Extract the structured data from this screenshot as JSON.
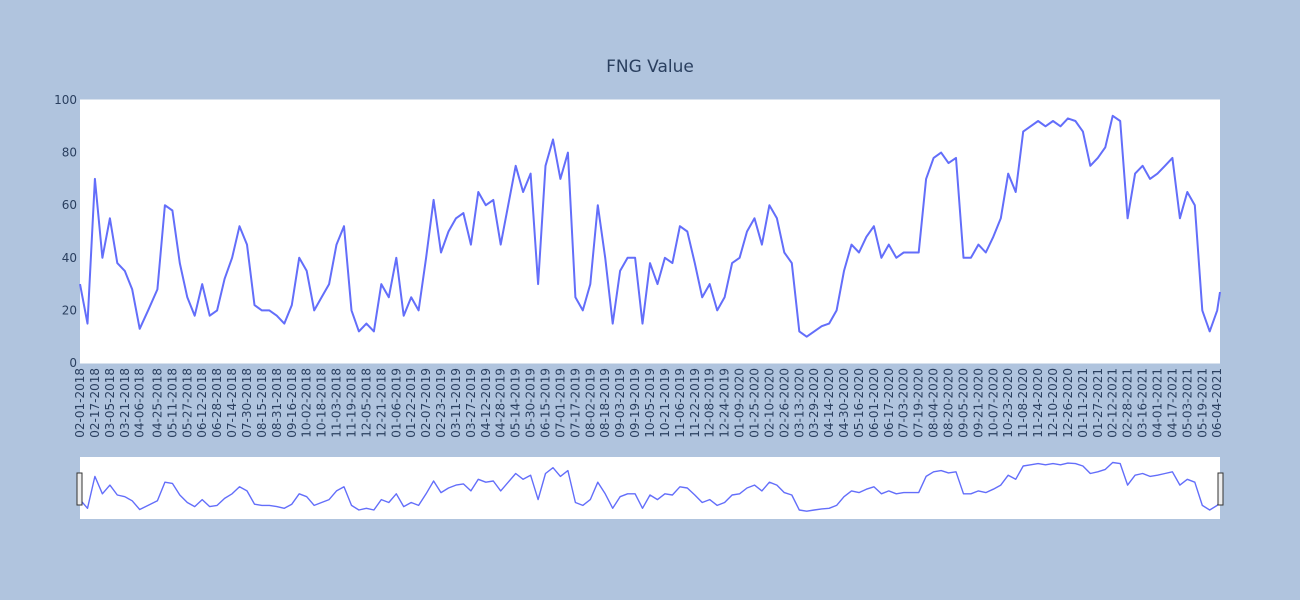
{
  "chart_data": {
    "type": "line",
    "title": "FNG Value",
    "x": [
      "2018-02-01",
      "2018-02-09",
      "2018-02-17",
      "2018-02-25",
      "2018-03-05",
      "2018-03-13",
      "2018-03-21",
      "2018-03-29",
      "2018-04-06",
      "2018-04-15",
      "2018-04-25",
      "2018-05-03",
      "2018-05-11",
      "2018-05-19",
      "2018-05-27",
      "2018-06-04",
      "2018-06-12",
      "2018-06-20",
      "2018-06-28",
      "2018-07-06",
      "2018-07-14",
      "2018-07-22",
      "2018-07-30",
      "2018-08-07",
      "2018-08-15",
      "2018-08-23",
      "2018-08-31",
      "2018-09-08",
      "2018-09-16",
      "2018-09-24",
      "2018-10-02",
      "2018-10-10",
      "2018-10-18",
      "2018-10-26",
      "2018-11-03",
      "2018-11-11",
      "2018-11-19",
      "2018-11-27",
      "2018-12-05",
      "2018-12-13",
      "2018-12-21",
      "2018-12-29",
      "2019-01-06",
      "2019-01-14",
      "2019-01-22",
      "2019-01-30",
      "2019-02-07",
      "2019-02-15",
      "2019-02-23",
      "2019-03-03",
      "2019-03-11",
      "2019-03-19",
      "2019-03-27",
      "2019-04-04",
      "2019-04-12",
      "2019-04-20",
      "2019-04-28",
      "2019-05-06",
      "2019-05-14",
      "2019-05-22",
      "2019-05-30",
      "2019-06-07",
      "2019-06-15",
      "2019-06-23",
      "2019-07-01",
      "2019-07-09",
      "2019-07-17",
      "2019-07-25",
      "2019-08-02",
      "2019-08-10",
      "2019-08-18",
      "2019-08-26",
      "2019-09-03",
      "2019-09-11",
      "2019-09-19",
      "2019-09-27",
      "2019-10-05",
      "2019-10-13",
      "2019-10-21",
      "2019-10-29",
      "2019-11-06",
      "2019-11-14",
      "2019-11-22",
      "2019-11-30",
      "2019-12-08",
      "2019-12-16",
      "2019-12-24",
      "2020-01-01",
      "2020-01-09",
      "2020-01-17",
      "2020-01-25",
      "2020-02-02",
      "2020-02-10",
      "2020-02-18",
      "2020-02-26",
      "2020-03-05",
      "2020-03-13",
      "2020-03-21",
      "2020-03-29",
      "2020-04-06",
      "2020-04-14",
      "2020-04-22",
      "2020-04-30",
      "2020-05-08",
      "2020-05-16",
      "2020-05-24",
      "2020-06-01",
      "2020-06-09",
      "2020-06-17",
      "2020-06-25",
      "2020-07-03",
      "2020-07-11",
      "2020-07-19",
      "2020-07-27",
      "2020-08-04",
      "2020-08-12",
      "2020-08-20",
      "2020-08-28",
      "2020-09-05",
      "2020-09-13",
      "2020-09-21",
      "2020-09-29",
      "2020-10-07",
      "2020-10-15",
      "2020-10-23",
      "2020-10-31",
      "2020-11-08",
      "2020-11-16",
      "2020-11-24",
      "2020-12-02",
      "2020-12-10",
      "2020-12-18",
      "2020-12-26",
      "2021-01-03",
      "2021-01-11",
      "2021-01-19",
      "2021-01-27",
      "2021-02-04",
      "2021-02-12",
      "2021-02-20",
      "2021-02-28",
      "2021-03-08",
      "2021-03-16",
      "2021-03-24",
      "2021-04-01",
      "2021-04-09",
      "2021-04-17",
      "2021-04-25",
      "2021-05-03",
      "2021-05-11",
      "2021-05-19",
      "2021-05-27",
      "2021-06-04",
      "2021-06-07"
    ],
    "series": [
      {
        "color": "#636efa",
        "values": [
          30,
          15,
          70,
          40,
          55,
          38,
          35,
          28,
          13,
          20,
          28,
          60,
          58,
          38,
          25,
          18,
          30,
          18,
          20,
          32,
          40,
          52,
          45,
          22,
          20,
          20,
          18,
          15,
          22,
          40,
          35,
          20,
          25,
          30,
          45,
          52,
          20,
          12,
          15,
          12,
          30,
          25,
          40,
          18,
          25,
          20,
          40,
          62,
          42,
          50,
          55,
          57,
          45,
          65,
          60,
          62,
          45,
          60,
          75,
          65,
          72,
          30,
          75,
          85,
          70,
          80,
          25,
          20,
          30,
          60,
          40,
          15,
          35,
          40,
          40,
          15,
          38,
          30,
          40,
          38,
          52,
          50,
          38,
          25,
          30,
          20,
          25,
          38,
          40,
          50,
          55,
          45,
          60,
          55,
          42,
          38,
          12,
          10,
          12,
          14,
          15,
          20,
          35,
          45,
          42,
          48,
          52,
          40,
          45,
          40,
          42,
          42,
          42,
          70,
          78,
          80,
          76,
          78,
          40,
          40,
          45,
          42,
          48,
          55,
          72,
          65,
          88,
          90,
          92,
          90,
          92,
          90,
          93,
          92,
          88,
          75,
          78,
          82,
          94,
          92,
          55,
          72,
          75,
          70,
          72,
          75,
          78,
          55,
          65,
          60,
          20,
          12,
          20,
          27
        ]
      }
    ],
    "xlim": [
      "2018-02-01",
      "2021-06-07"
    ],
    "ylim": [
      0,
      100
    ],
    "yticks": [
      0,
      20,
      40,
      60,
      80,
      100
    ],
    "xticks": [
      {
        "value": "2018-02-01",
        "label": "02-01-2018"
      },
      {
        "value": "2018-02-17",
        "label": "02-17-2018"
      },
      {
        "value": "2018-03-05",
        "label": "03-05-2018"
      },
      {
        "value": "2018-03-21",
        "label": "03-21-2018"
      },
      {
        "value": "2018-04-06",
        "label": "04-06-2018"
      },
      {
        "value": "2018-04-25",
        "label": "04-25-2018"
      },
      {
        "value": "2018-05-11",
        "label": "05-11-2018"
      },
      {
        "value": "2018-05-27",
        "label": "05-27-2018"
      },
      {
        "value": "2018-06-12",
        "label": "06-12-2018"
      },
      {
        "value": "2018-06-28",
        "label": "06-28-2018"
      },
      {
        "value": "2018-07-14",
        "label": "07-14-2018"
      },
      {
        "value": "2018-07-30",
        "label": "07-30-2018"
      },
      {
        "value": "2018-08-15",
        "label": "08-15-2018"
      },
      {
        "value": "2018-08-31",
        "label": "08-31-2018"
      },
      {
        "value": "2018-09-16",
        "label": "09-16-2018"
      },
      {
        "value": "2018-10-02",
        "label": "10-02-2018"
      },
      {
        "value": "2018-10-18",
        "label": "10-18-2018"
      },
      {
        "value": "2018-11-03",
        "label": "11-03-2018"
      },
      {
        "value": "2018-11-19",
        "label": "11-19-2018"
      },
      {
        "value": "2018-12-05",
        "label": "12-05-2018"
      },
      {
        "value": "2018-12-21",
        "label": "12-21-2018"
      },
      {
        "value": "2019-01-06",
        "label": "01-06-2019"
      },
      {
        "value": "2019-01-22",
        "label": "01-22-2019"
      },
      {
        "value": "2019-02-07",
        "label": "02-07-2019"
      },
      {
        "value": "2019-02-23",
        "label": "02-23-2019"
      },
      {
        "value": "2019-03-11",
        "label": "03-11-2019"
      },
      {
        "value": "2019-03-27",
        "label": "03-27-2019"
      },
      {
        "value": "2019-04-12",
        "label": "04-12-2019"
      },
      {
        "value": "2019-04-28",
        "label": "04-28-2019"
      },
      {
        "value": "2019-05-14",
        "label": "05-14-2019"
      },
      {
        "value": "2019-05-30",
        "label": "05-30-2019"
      },
      {
        "value": "2019-06-15",
        "label": "06-15-2019"
      },
      {
        "value": "2019-07-01",
        "label": "07-01-2019"
      },
      {
        "value": "2019-07-17",
        "label": "07-17-2019"
      },
      {
        "value": "2019-08-02",
        "label": "08-02-2019"
      },
      {
        "value": "2019-08-18",
        "label": "08-18-2019"
      },
      {
        "value": "2019-09-03",
        "label": "09-03-2019"
      },
      {
        "value": "2019-09-19",
        "label": "09-19-2019"
      },
      {
        "value": "2019-10-05",
        "label": "10-05-2019"
      },
      {
        "value": "2019-10-21",
        "label": "10-21-2019"
      },
      {
        "value": "2019-11-06",
        "label": "11-06-2019"
      },
      {
        "value": "2019-11-22",
        "label": "11-22-2019"
      },
      {
        "value": "2019-12-08",
        "label": "12-08-2019"
      },
      {
        "value": "2019-12-24",
        "label": "12-24-2019"
      },
      {
        "value": "2020-01-09",
        "label": "01-09-2020"
      },
      {
        "value": "2020-01-25",
        "label": "01-25-2020"
      },
      {
        "value": "2020-02-10",
        "label": "02-10-2020"
      },
      {
        "value": "2020-02-26",
        "label": "02-26-2020"
      },
      {
        "value": "2020-03-13",
        "label": "03-13-2020"
      },
      {
        "value": "2020-03-29",
        "label": "03-29-2020"
      },
      {
        "value": "2020-04-14",
        "label": "04-14-2020"
      },
      {
        "value": "2020-04-30",
        "label": "04-30-2020"
      },
      {
        "value": "2020-05-16",
        "label": "05-16-2020"
      },
      {
        "value": "2020-06-01",
        "label": "06-01-2020"
      },
      {
        "value": "2020-06-17",
        "label": "06-17-2020"
      },
      {
        "value": "2020-07-03",
        "label": "07-03-2020"
      },
      {
        "value": "2020-07-19",
        "label": "07-19-2020"
      },
      {
        "value": "2020-08-04",
        "label": "08-04-2020"
      },
      {
        "value": "2020-08-20",
        "label": "08-20-2020"
      },
      {
        "value": "2020-09-05",
        "label": "09-05-2020"
      },
      {
        "value": "2020-09-21",
        "label": "09-21-2020"
      },
      {
        "value": "2020-10-07",
        "label": "10-07-2020"
      },
      {
        "value": "2020-10-23",
        "label": "10-23-2020"
      },
      {
        "value": "2020-11-08",
        "label": "11-08-2020"
      },
      {
        "value": "2020-11-24",
        "label": "11-24-2020"
      },
      {
        "value": "2020-12-10",
        "label": "12-10-2020"
      },
      {
        "value": "2020-12-26",
        "label": "12-26-2020"
      },
      {
        "value": "2021-01-11",
        "label": "01-11-2021"
      },
      {
        "value": "2021-01-27",
        "label": "01-27-2021"
      },
      {
        "value": "2021-02-12",
        "label": "02-12-2021"
      },
      {
        "value": "2021-02-28",
        "label": "02-28-2021"
      },
      {
        "value": "2021-03-16",
        "label": "03-16-2021"
      },
      {
        "value": "2021-04-01",
        "label": "04-01-2021"
      },
      {
        "value": "2021-04-17",
        "label": "04-17-2021"
      },
      {
        "value": "2021-05-03",
        "label": "05-03-2021"
      },
      {
        "value": "2021-05-19",
        "label": "05-19-2021"
      },
      {
        "value": "2021-06-04",
        "label": "06-04-2021"
      }
    ],
    "range_slider": true
  }
}
